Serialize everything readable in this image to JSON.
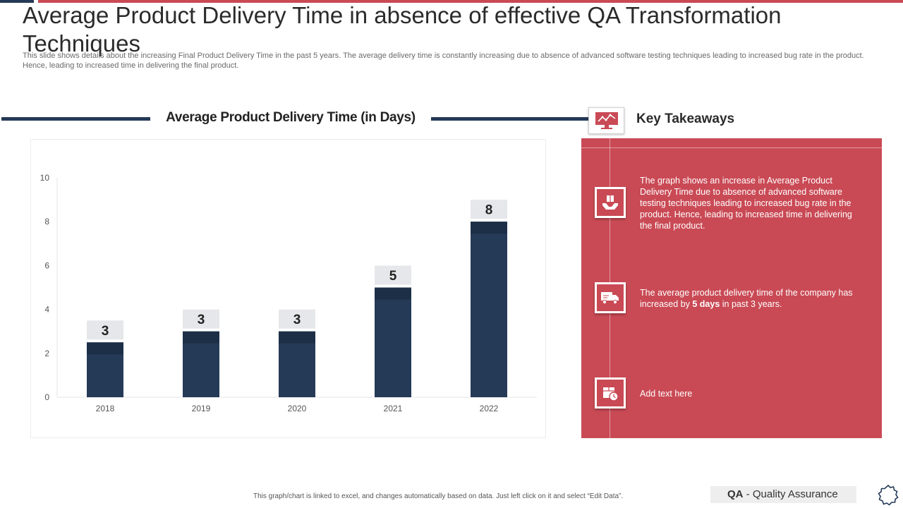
{
  "header": {
    "title": "Average Product Delivery Time in absence of effective QA Transformation Techniques",
    "subtitle": "This slide shows details about the increasing Final Product Delivery Time in the past 5 years. The average delivery time is constantly increasing due to absence of advanced software testing techniques leading to increased bug rate in the product. Hence, leading to increased time in delivering the final product."
  },
  "chart_data": {
    "type": "bar",
    "title": "Average Product Delivery Time (in Days)",
    "categories": [
      "2018",
      "2019",
      "2020",
      "2021",
      "2022"
    ],
    "values": [
      2.5,
      3,
      3,
      5,
      8
    ],
    "data_labels": [
      "3",
      "3",
      "3",
      "5",
      "8"
    ],
    "ylim": [
      0,
      10
    ],
    "yticks": [
      0,
      2,
      4,
      6,
      8,
      10
    ],
    "xlabel": "",
    "ylabel": "",
    "grid": false,
    "bar_color": "#253a57",
    "label_bg": "#e6e7ea"
  },
  "takeaways": {
    "heading": "Key Takeaways",
    "items": [
      {
        "text": "The graph shows an increase in Average Product Delivery Time due to absence of advanced software testing techniques leading to increased bug rate in the product. Hence, leading to increased time in delivering the final product."
      },
      {
        "text_before": "The average  product delivery time of the company has increased by ",
        "text_bold": "5 days",
        "text_after": " in past 3 years."
      },
      {
        "text": "Add text here"
      }
    ]
  },
  "footer": {
    "note": "This graph/chart is linked to excel, and changes automatically based on data. Just left click on it and select “Edit Data”.",
    "badge_abbr": "QA",
    "badge_sep": " - ",
    "badge_text": "Quality Assurance"
  },
  "colors": {
    "navy": "#253a57",
    "accent_red": "#c94a55",
    "label_bg": "#e6e7ea"
  }
}
